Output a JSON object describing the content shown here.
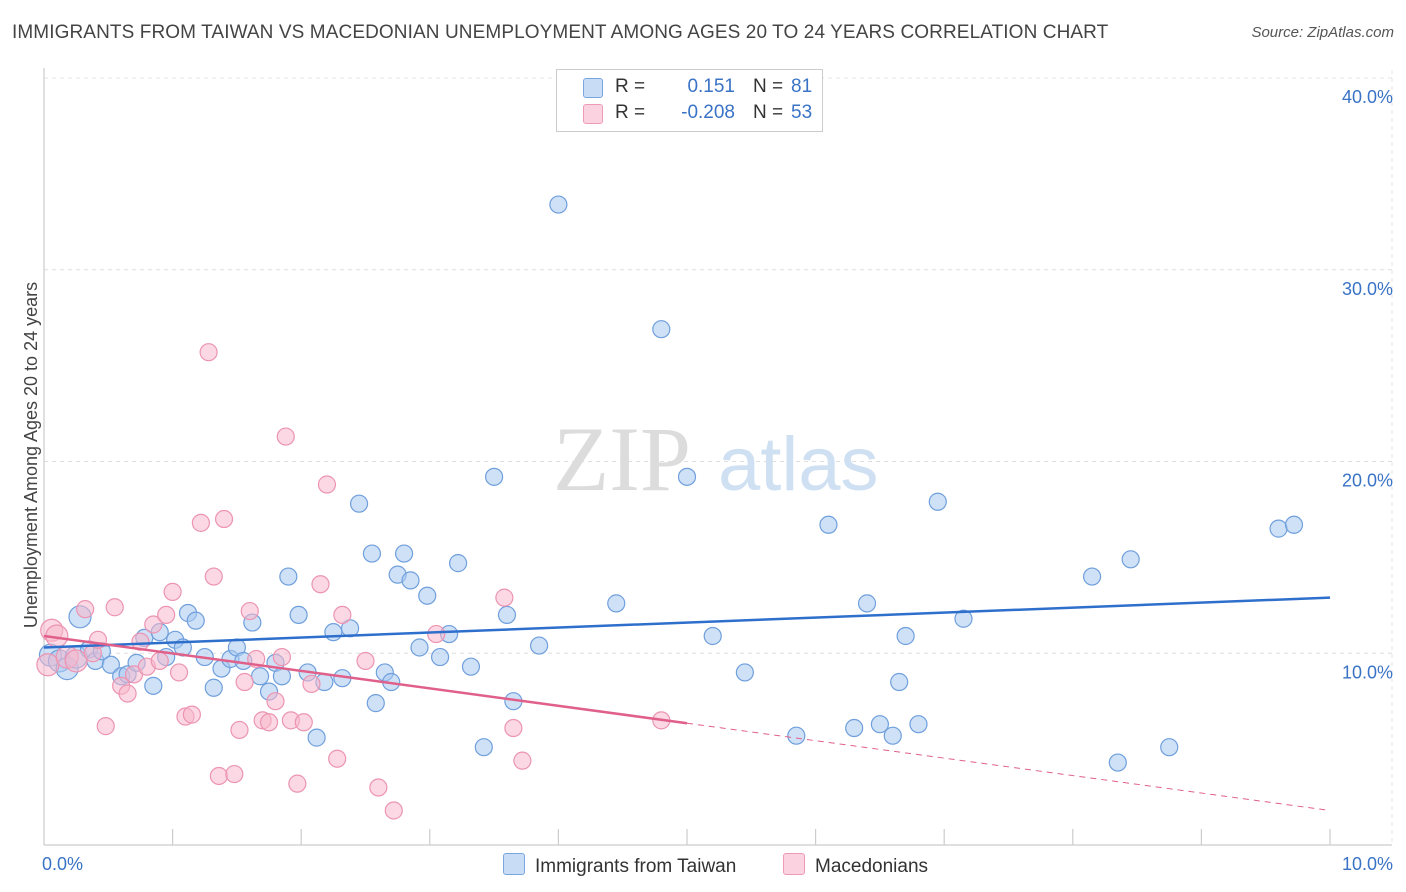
{
  "title": "IMMIGRANTS FROM TAIWAN VS MACEDONIAN UNEMPLOYMENT AMONG AGES 20 TO 24 YEARS CORRELATION CHART",
  "source": "Source: ZipAtlas.com",
  "watermark": {
    "zip": "ZIP",
    "atlas": "atlas"
  },
  "legend": {
    "rows": [
      {
        "r_label": "R =",
        "r_value": "0.151",
        "n_label": "N =",
        "n_value": "81",
        "color": "#a8c8f0"
      },
      {
        "r_label": "R =",
        "r_value": "-0.208",
        "n_label": "N =",
        "n_value": "53",
        "color": "#f7b8cc"
      }
    ]
  },
  "bottom_legend": [
    {
      "label": "Immigrants from Taiwan",
      "color": "#a8c8f0"
    },
    {
      "label": "Macedonians",
      "color": "#f7b8cc"
    }
  ],
  "chart_data": {
    "type": "scatter",
    "title": "IMMIGRANTS FROM TAIWAN VS MACEDONIAN UNEMPLOYMENT AMONG AGES 20 TO 24 YEARS CORRELATION CHART",
    "xlabel": "",
    "ylabel": "Unemployment Among Ages 20 to 24 years",
    "xlim": [
      0,
      10
    ],
    "ylim": [
      0,
      40
    ],
    "x_tick_labels": [
      "0.0%",
      "10.0%"
    ],
    "y_tick_labels": [
      "10.0%",
      "20.0%",
      "30.0%",
      "40.0%"
    ],
    "grid": true,
    "series": [
      {
        "name": "Immigrants from Taiwan",
        "color": "#3b78d0",
        "fill": "#a8c8f0",
        "points": [
          [
            0.05,
            9.9
          ],
          [
            0.12,
            9.6
          ],
          [
            0.18,
            9.2
          ],
          [
            0.25,
            9.8
          ],
          [
            0.28,
            11.9
          ],
          [
            0.35,
            10.2
          ],
          [
            0.4,
            9.6
          ],
          [
            0.45,
            10.1
          ],
          [
            0.52,
            9.4
          ],
          [
            0.6,
            8.8
          ],
          [
            0.65,
            8.9
          ],
          [
            0.72,
            9.5
          ],
          [
            0.78,
            10.8
          ],
          [
            0.85,
            8.3
          ],
          [
            0.9,
            11.1
          ],
          [
            0.95,
            9.8
          ],
          [
            1.02,
            10.7
          ],
          [
            1.08,
            10.3
          ],
          [
            1.12,
            12.1
          ],
          [
            1.18,
            11.7
          ],
          [
            1.25,
            9.8
          ],
          [
            1.32,
            8.2
          ],
          [
            1.38,
            9.2
          ],
          [
            1.45,
            9.7
          ],
          [
            1.5,
            10.3
          ],
          [
            1.55,
            9.6
          ],
          [
            1.62,
            11.6
          ],
          [
            1.68,
            8.8
          ],
          [
            1.75,
            8.0
          ],
          [
            1.8,
            9.5
          ],
          [
            1.85,
            8.8
          ],
          [
            1.9,
            14.0
          ],
          [
            1.98,
            12.0
          ],
          [
            2.05,
            9.0
          ],
          [
            2.12,
            5.6
          ],
          [
            2.18,
            8.5
          ],
          [
            2.25,
            11.1
          ],
          [
            2.32,
            8.7
          ],
          [
            2.38,
            11.3
          ],
          [
            2.45,
            17.8
          ],
          [
            2.55,
            15.2
          ],
          [
            2.58,
            7.4
          ],
          [
            2.65,
            9.0
          ],
          [
            2.7,
            8.5
          ],
          [
            2.75,
            14.1
          ],
          [
            2.8,
            15.2
          ],
          [
            2.85,
            13.8
          ],
          [
            2.92,
            10.3
          ],
          [
            2.98,
            13.0
          ],
          [
            3.08,
            9.8
          ],
          [
            3.15,
            11.0
          ],
          [
            3.22,
            14.7
          ],
          [
            3.32,
            9.3
          ],
          [
            3.42,
            5.1
          ],
          [
            3.5,
            19.2
          ],
          [
            3.6,
            12.0
          ],
          [
            3.65,
            7.5
          ],
          [
            3.85,
            10.4
          ],
          [
            4.0,
            33.4
          ],
          [
            4.45,
            12.6
          ],
          [
            4.8,
            26.9
          ],
          [
            5.0,
            19.2
          ],
          [
            5.2,
            10.9
          ],
          [
            5.45,
            9.0
          ],
          [
            5.85,
            5.7
          ],
          [
            6.1,
            16.7
          ],
          [
            6.3,
            6.1
          ],
          [
            6.4,
            12.6
          ],
          [
            6.5,
            6.3
          ],
          [
            6.6,
            5.7
          ],
          [
            6.65,
            8.5
          ],
          [
            6.7,
            10.9
          ],
          [
            6.8,
            6.3
          ],
          [
            6.95,
            17.9
          ],
          [
            7.15,
            11.8
          ],
          [
            8.15,
            14.0
          ],
          [
            8.35,
            4.3
          ],
          [
            8.45,
            14.9
          ],
          [
            8.75,
            5.1
          ],
          [
            9.6,
            16.5
          ],
          [
            9.72,
            16.7
          ]
        ],
        "trend": {
          "x": [
            0,
            10
          ],
          "y": [
            10.3,
            12.9
          ],
          "dashed_from": null
        }
      },
      {
        "name": "Macedonians",
        "color": "#e0608a",
        "fill": "#f7b8cc",
        "points": [
          [
            0.03,
            9.4
          ],
          [
            0.06,
            11.2
          ],
          [
            0.1,
            10.9
          ],
          [
            0.18,
            9.8
          ],
          [
            0.25,
            9.6
          ],
          [
            0.32,
            12.3
          ],
          [
            0.38,
            10.0
          ],
          [
            0.42,
            10.7
          ],
          [
            0.48,
            6.2
          ],
          [
            0.55,
            12.4
          ],
          [
            0.6,
            8.3
          ],
          [
            0.65,
            7.9
          ],
          [
            0.7,
            8.9
          ],
          [
            0.75,
            10.6
          ],
          [
            0.8,
            9.3
          ],
          [
            0.85,
            11.5
          ],
          [
            0.9,
            9.6
          ],
          [
            0.95,
            12.0
          ],
          [
            1.0,
            13.2
          ],
          [
            1.05,
            9.0
          ],
          [
            1.1,
            6.7
          ],
          [
            1.15,
            6.8
          ],
          [
            1.22,
            16.8
          ],
          [
            1.28,
            25.7
          ],
          [
            1.32,
            14.0
          ],
          [
            1.36,
            3.6
          ],
          [
            1.4,
            17.0
          ],
          [
            1.48,
            3.7
          ],
          [
            1.52,
            6.0
          ],
          [
            1.56,
            8.5
          ],
          [
            1.6,
            12.2
          ],
          [
            1.65,
            9.7
          ],
          [
            1.7,
            6.5
          ],
          [
            1.75,
            6.4
          ],
          [
            1.8,
            7.5
          ],
          [
            1.85,
            9.8
          ],
          [
            1.88,
            21.3
          ],
          [
            1.92,
            6.5
          ],
          [
            1.97,
            3.2
          ],
          [
            2.02,
            6.4
          ],
          [
            2.08,
            8.4
          ],
          [
            2.15,
            13.6
          ],
          [
            2.2,
            18.8
          ],
          [
            2.28,
            4.5
          ],
          [
            2.32,
            12.0
          ],
          [
            2.5,
            9.6
          ],
          [
            2.6,
            3.0
          ],
          [
            2.72,
            1.8
          ],
          [
            3.05,
            11.0
          ],
          [
            3.58,
            12.9
          ],
          [
            3.65,
            6.1
          ],
          [
            3.72,
            4.4
          ],
          [
            4.8,
            6.5
          ]
        ],
        "trend": {
          "x": [
            0,
            10
          ],
          "y": [
            10.9,
            1.8
          ],
          "dashed_from": 5.0
        }
      }
    ]
  }
}
